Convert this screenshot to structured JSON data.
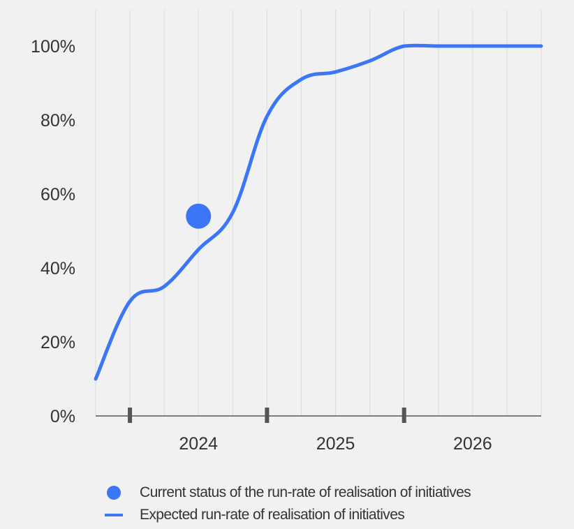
{
  "chart_data": {
    "type": "line",
    "title": "",
    "xlabel": "",
    "ylabel": "",
    "x_tick_labels": [
      "2024",
      "2025",
      "2026"
    ],
    "y_tick_labels": [
      "0%",
      "20%",
      "40%",
      "60%",
      "80%",
      "100%"
    ],
    "ylim": [
      0,
      100
    ],
    "x_range_quarters": [
      0,
      13
    ],
    "grid": "vertical",
    "legend_placement": "bottom",
    "colors": {
      "series": "#3b76f6",
      "grid": "#dcdcdc",
      "axis": "#555555",
      "background": "#f1f1f1"
    },
    "series": [
      {
        "name": "Expected run-rate of realisation of initiatives",
        "kind": "line",
        "x_quarters": [
          0,
          1,
          2,
          3,
          4,
          5,
          6,
          7,
          8,
          9,
          10,
          11,
          12,
          13
        ],
        "values": [
          10,
          31,
          35,
          45,
          55,
          81,
          91,
          93,
          96,
          100,
          100,
          100,
          100,
          100
        ]
      },
      {
        "name": "Current status of the run-rate of realisation of initiatives",
        "kind": "point",
        "x_quarters": [
          3
        ],
        "values": [
          54
        ]
      }
    ]
  },
  "legend": {
    "items": [
      {
        "label": "Current status of the run-rate of realisation of initiatives",
        "marker": "dot"
      },
      {
        "label": "Expected run-rate of realisation of initiatives",
        "marker": "line"
      }
    ]
  }
}
